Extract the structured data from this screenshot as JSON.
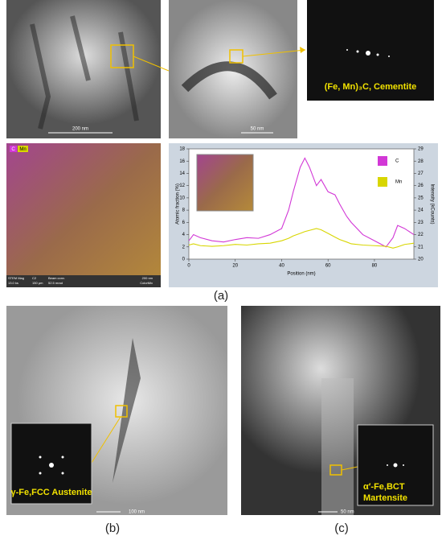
{
  "panels": {
    "a_label": "(a)",
    "b_label": "(b)",
    "c_label": "(c)",
    "scale_top_left": "200 nm",
    "scale_top_mid": "50 nm",
    "scale_map": "200 nm",
    "scale_b": "100 nm",
    "scale_c": "50 nm",
    "fft_top": "(Fe, Mn)₃C, Cementite",
    "fft_b": "γ-Fe,FCC Austenite",
    "fft_c_1": "α′-Fe,BCT",
    "fft_c_2": "Martensite",
    "map_legend": [
      "C",
      "Mn"
    ],
    "map_info": [
      "STEM Mag",
      "C2",
      "Beam conv.",
      "13.0 ks",
      "150 µm",
      "52.5 mrad",
      "ColorMix"
    ]
  },
  "chart_data": {
    "type": "line",
    "x_label": "Position (nm)",
    "y_label": "Atomic fraction (%)",
    "y2_label": "Intensity (kCounts)",
    "x": [
      0,
      2,
      5,
      10,
      15,
      20,
      25,
      30,
      35,
      40,
      43,
      45,
      48,
      50,
      52,
      55,
      57,
      60,
      63,
      65,
      68,
      70,
      75,
      80,
      85,
      88,
      90,
      93,
      97
    ],
    "series": [
      {
        "name": "C",
        "color": "#d238d6",
        "values": [
          3,
          4,
          3.5,
          3,
          2.8,
          3.2,
          3.5,
          3.4,
          4,
          5,
          8,
          11,
          15,
          16.5,
          15,
          12,
          13,
          11,
          10.5,
          9,
          7,
          6,
          4,
          3,
          2,
          3.5,
          5.5,
          5,
          4
        ]
      },
      {
        "name": "Mn",
        "color": "#d8d600",
        "values": [
          2.3,
          2.5,
          2.2,
          2.1,
          2.2,
          2.4,
          2.3,
          2.5,
          2.6,
          3,
          3.4,
          3.8,
          4.2,
          4.5,
          4.7,
          5,
          4.8,
          4.2,
          3.6,
          3.2,
          2.8,
          2.5,
          2.3,
          2.2,
          2.1,
          1.8,
          2,
          2.4,
          2.6
        ]
      }
    ],
    "xlim": [
      0,
      97
    ],
    "xticks": [
      0,
      20,
      40,
      60,
      80
    ],
    "ylim": [
      0,
      18
    ],
    "yticks": [
      0,
      2,
      4,
      6,
      8,
      10,
      12,
      14,
      16,
      18
    ],
    "y2lim": [
      20,
      29
    ],
    "y2ticks": [
      20,
      21,
      22,
      23,
      24,
      25,
      26,
      27,
      28,
      29
    ]
  }
}
